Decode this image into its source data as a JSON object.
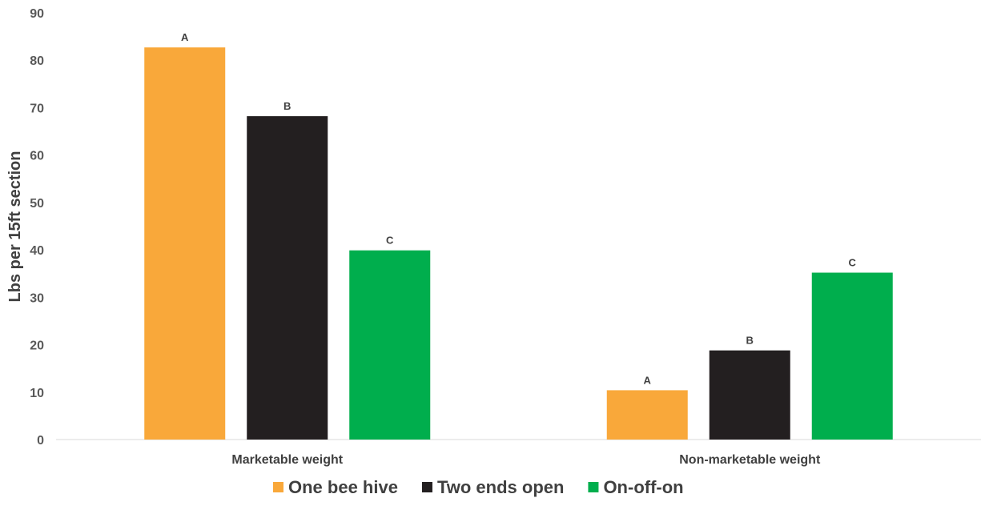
{
  "chart_data": {
    "type": "bar",
    "ylabel": "Lbs per 15ft section",
    "xlabel": "",
    "ylim": [
      0,
      90
    ],
    "yticks": [
      0,
      10,
      20,
      30,
      40,
      50,
      60,
      70,
      80,
      90
    ],
    "grid": false,
    "legend_position": "bottom",
    "categories": [
      "Marketable weight",
      "Non-marketable weight"
    ],
    "series": [
      {
        "name": "One bee hive",
        "color": "#F9A83A",
        "values": [
          82.7,
          10.4
        ],
        "labels": [
          "A",
          "A"
        ]
      },
      {
        "name": "Two ends open",
        "color": "#231F20",
        "values": [
          68.2,
          18.8
        ],
        "labels": [
          "B",
          "B"
        ]
      },
      {
        "name": "On-off-on",
        "color": "#00AE4D",
        "values": [
          39.9,
          35.2
        ],
        "labels": [
          "C",
          "C"
        ]
      }
    ]
  }
}
